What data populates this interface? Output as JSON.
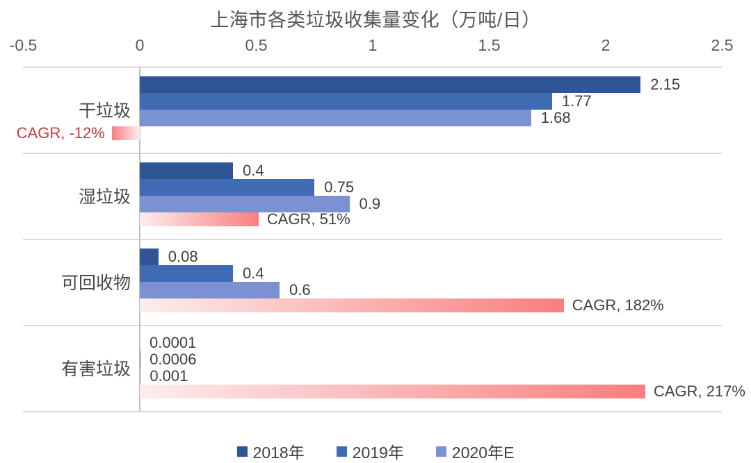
{
  "chart_data": {
    "type": "bar",
    "orientation": "horizontal",
    "title": "上海市各类垃圾收集量变化（万吨/日）",
    "categories": [
      "干垃圾",
      "湿垃圾",
      "可回收物",
      "有害垃圾"
    ],
    "series": [
      {
        "name": "2018年",
        "color": "#2F5594",
        "values": [
          2.15,
          0.4,
          0.08,
          0.0001
        ],
        "value_labels": [
          "2.15",
          "0.4",
          "0.08",
          "0.0001"
        ]
      },
      {
        "name": "2019年",
        "color": "#3F6AB4",
        "values": [
          1.77,
          0.75,
          0.4,
          0.0006
        ],
        "value_labels": [
          "1.77",
          "0.75",
          "0.4",
          "0.0006"
        ]
      },
      {
        "name": "2020年E",
        "color": "#7B91D1",
        "values": [
          1.68,
          0.9,
          0.6,
          0.001
        ],
        "value_labels": [
          "1.68",
          "0.9",
          "0.6",
          "0.001"
        ]
      }
    ],
    "cagr_series": {
      "name": "CAGR",
      "axis_values": [
        -0.12,
        0.51,
        1.82,
        2.17
      ],
      "labels": [
        "CAGR, -12%",
        "CAGR, 51%",
        "CAGR, 182%",
        "CAGR, 217%"
      ],
      "label_colors": [
        "#C23B3B",
        "#3E3E3E",
        "#3E3E3E",
        "#3E3E3E"
      ],
      "gradient_start": "#FCEDED",
      "gradient_end": "#F97E7E"
    },
    "x_axis": {
      "position": "top",
      "range": [
        -0.5,
        2.5
      ],
      "ticks": [
        -0.5,
        0,
        0.5,
        1,
        1.5,
        2,
        2.5
      ],
      "tick_labels": [
        "-0.5",
        "0",
        "0.5",
        "1",
        "1.5",
        "2",
        "2.5"
      ]
    },
    "legend": {
      "position": "bottom",
      "items": [
        "2018年",
        "2019年",
        "2020年E"
      ]
    },
    "grid": "horizontal-row-separators-only",
    "colors": {
      "title_text": "#565656",
      "tick_text": "#595959",
      "category_text": "#474747",
      "value_text": "#3E3E3E",
      "legend_text": "#3E3E3E",
      "row_separator": "#D9D9D9",
      "zero_axis_line": "#BEBEBE",
      "background": "#FFFFFF"
    }
  }
}
